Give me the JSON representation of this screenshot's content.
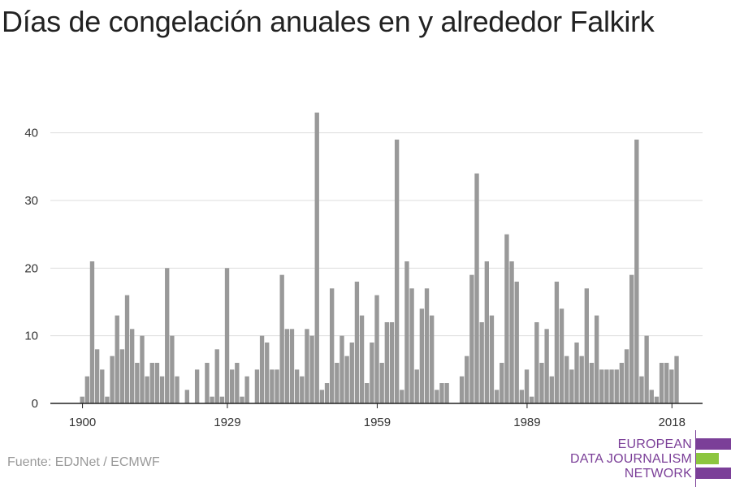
{
  "title": "Días de congelación anuales en y alrededor Falkirk",
  "source": "Fuente: EDJNet / ECMWF",
  "logo": {
    "line1": "EUROPEAN",
    "line2": "DATA JOURNALISM",
    "line3": "NETWORK",
    "colors": {
      "purple": "#7b3f98",
      "green": "#8cc63f"
    }
  },
  "chart_data": {
    "type": "bar",
    "title": "Días de congelación anuales en y alrededor Falkirk",
    "xlabel": "",
    "ylabel": "",
    "x_start": 1900,
    "x_end": 2019,
    "x_ticks": [
      1900,
      1929,
      1959,
      1989,
      2018
    ],
    "y_ticks": [
      0,
      10,
      20,
      30,
      40
    ],
    "ylim": [
      0,
      45
    ],
    "grid": true,
    "bar_color": "#999999",
    "values": [
      1,
      4,
      21,
      8,
      5,
      1,
      7,
      13,
      8,
      16,
      11,
      6,
      10,
      4,
      6,
      6,
      4,
      20,
      10,
      4,
      0,
      2,
      0,
      5,
      0,
      6,
      1,
      8,
      1,
      20,
      5,
      6,
      1,
      4,
      0,
      5,
      10,
      9,
      5,
      5,
      19,
      11,
      11,
      5,
      4,
      11,
      10,
      43,
      2,
      3,
      17,
      6,
      10,
      7,
      9,
      18,
      13,
      3,
      9,
      16,
      6,
      12,
      12,
      39,
      2,
      21,
      17,
      5,
      14,
      17,
      13,
      2,
      3,
      3,
      0,
      0,
      4,
      7,
      19,
      34,
      12,
      21,
      13,
      2,
      6,
      25,
      21,
      18,
      2,
      5,
      1,
      12,
      6,
      11,
      4,
      18,
      14,
      7,
      5,
      9,
      7,
      17,
      6,
      13,
      5,
      5,
      5,
      5,
      6,
      8,
      19,
      39,
      4,
      10,
      2,
      1,
      6,
      6,
      5,
      7
    ]
  }
}
